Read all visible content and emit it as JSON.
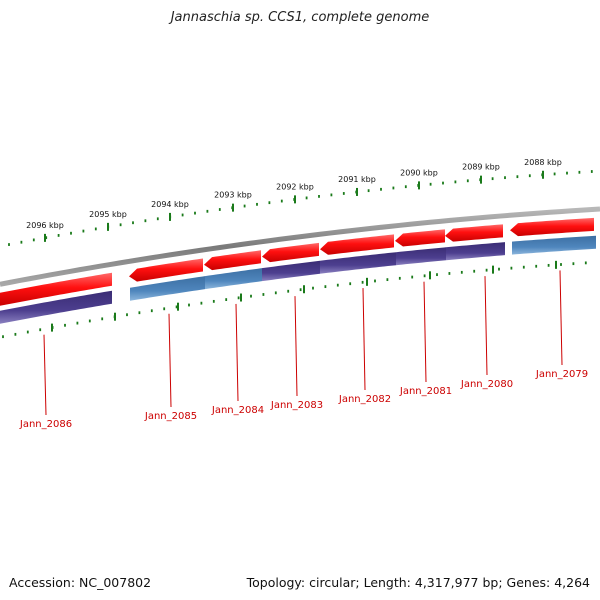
{
  "title": "Jannaschia sp. CCS1, complete genome",
  "footer": {
    "accession": "Accession: NC_007802",
    "summary": "Topology: circular; Length: 4,317,977 bp; Genes: 4,264"
  },
  "kbp_labels": [
    "2096 kbp",
    "2095 kbp",
    "2094 kbp",
    "2093 kbp",
    "2092 kbp",
    "2091 kbp",
    "2090 kbp",
    "2089 kbp",
    "2088 kbp"
  ],
  "gene_labels": [
    "Jann_2086",
    "Jann_2085",
    "Jann_2084",
    "Jann_2083",
    "Jann_2082",
    "Jann_2081",
    "Jann_2080",
    "Jann_2079"
  ],
  "colors": {
    "backbone": "#8a8a8a",
    "cds_red": "#ff1a1a",
    "cds_purple": "#4b3c8a",
    "cds_blue": "#4a7fb5",
    "ticks": "#1a7a1a",
    "gene_label": "#cc0000"
  }
}
